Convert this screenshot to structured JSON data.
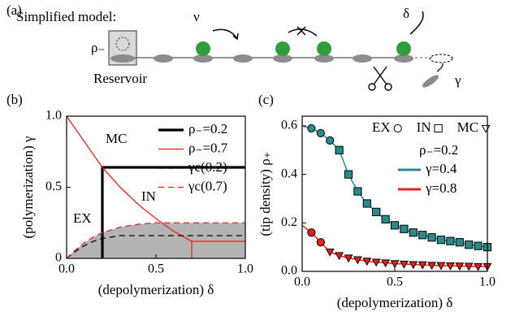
{
  "diagram": {
    "panel_label": "(a)",
    "title": "Simplified model:",
    "reservoir_symbol": "ρ₋",
    "reservoir_label": "Reservoir",
    "rate_move": "ν",
    "rate_depolymerization": "δ",
    "rate_polymerization": "γ"
  },
  "chart_data": [
    {
      "type": "line",
      "panel_label": "(b)",
      "xlabel": "(depolymerization) δ",
      "ylabel": "(polymerization) γ",
      "xlim": [
        0,
        1
      ],
      "ylim": [
        0,
        1
      ],
      "xticks": [
        {
          "value": 0,
          "label": "0.0"
        },
        0.5,
        {
          "value": 1,
          "label": "1.0"
        }
      ],
      "yticks": [
        0,
        0.5,
        {
          "value": 1,
          "label": "1.0"
        }
      ],
      "region_labels": [
        "MC",
        "IN",
        "EX"
      ],
      "shade": "#b3b3b3",
      "series": [
        {
          "name": "ρ₋=0.2",
          "color": "#000000",
          "width": 3.2,
          "dashed": false,
          "x": [
            0.2,
            0.2,
            1.0
          ],
          "values": [
            0,
            0.64,
            0.64
          ]
        },
        {
          "name": "ρ₋=0.7",
          "color": "#e8201c",
          "width": 1.3,
          "dashed": false,
          "x": [
            0,
            0.1,
            0.2,
            0.3,
            0.4,
            0.5,
            0.6,
            0.7,
            1.0,
            null,
            0.7,
            0.7
          ],
          "values": [
            1.0,
            0.82,
            0.64,
            0.5,
            0.38,
            0.28,
            0.19,
            0.12,
            0.12,
            null,
            0,
            0.12
          ]
        },
        {
          "name": "γc(0.2)",
          "color": "#000000",
          "width": 1.3,
          "dashed": true,
          "x": [
            0,
            0.05,
            0.1,
            0.15,
            0.2,
            0.3,
            0.4,
            0.5,
            0.7,
            1.0
          ],
          "values": [
            0,
            0.05,
            0.09,
            0.12,
            0.14,
            0.16,
            0.16,
            0.16,
            0.16,
            0.16
          ]
        },
        {
          "name": "γc(0.7)",
          "color": "#e8201c",
          "width": 1.3,
          "dashed": true,
          "shaded": true,
          "x": [
            0,
            0.05,
            0.1,
            0.15,
            0.2,
            0.3,
            0.4,
            0.5,
            0.7,
            1.0
          ],
          "values": [
            0,
            0.06,
            0.11,
            0.15,
            0.18,
            0.22,
            0.24,
            0.25,
            0.25,
            0.25
          ]
        }
      ]
    },
    {
      "type": "line",
      "panel_label": "(c)",
      "xlabel": "(depolymerization) δ",
      "ylabel": "(tip density) ρ₊",
      "xlim": [
        0,
        1
      ],
      "ylim": [
        0,
        0.64
      ],
      "xticks": [
        {
          "value": 0,
          "label": "0.0"
        },
        0.5,
        {
          "value": 1,
          "label": "1.0"
        }
      ],
      "yticks": [
        {
          "value": 0,
          "label": "0.0"
        },
        0.2,
        0.4,
        0.6
      ],
      "marker_legend": [
        {
          "label": "EX",
          "marker": "circle"
        },
        {
          "label": "IN",
          "marker": "square"
        },
        {
          "label": "MC",
          "marker": "triangle"
        }
      ],
      "legend_title": "ρ₋=0.2",
      "series": [
        {
          "name": "γ=0.4",
          "color": "#2a8a8c",
          "width": 1.5,
          "dashed": false,
          "x": [
            0,
            0.05,
            0.1,
            0.15,
            0.2,
            0.25,
            0.3,
            0.35,
            0.4,
            0.45,
            0.5,
            0.55,
            0.6,
            0.65,
            0.7,
            0.75,
            0.8,
            0.85,
            0.9,
            0.95,
            1.0
          ],
          "values": [
            0.6,
            0.59,
            0.57,
            0.54,
            0.5,
            0.4,
            0.33,
            0.28,
            0.245,
            0.215,
            0.19,
            0.175,
            0.16,
            0.15,
            0.14,
            0.13,
            0.125,
            0.12,
            0.11,
            0.105,
            0.1
          ],
          "markers": [
            null,
            "circle",
            "circle",
            "circle",
            "square",
            "square",
            "square",
            "square",
            "square",
            "square",
            "square",
            "square",
            "square",
            "square",
            "square",
            "square",
            "square",
            "square",
            "square",
            "square",
            "square"
          ]
        },
        {
          "name": "γ=0.8",
          "color": "#e8201c",
          "width": 1.5,
          "dashed": false,
          "x": [
            0,
            0.05,
            0.1,
            0.15,
            0.2,
            0.25,
            0.3,
            0.35,
            0.4,
            0.45,
            0.5,
            0.55,
            0.6,
            0.65,
            0.7,
            0.75,
            0.8,
            0.85,
            0.9,
            0.95,
            1.0
          ],
          "values": [
            0.19,
            0.16,
            0.12,
            0.08,
            0.065,
            0.055,
            0.048,
            0.042,
            0.038,
            0.035,
            0.032,
            0.03,
            0.028,
            0.027,
            0.025,
            0.024,
            0.023,
            0.022,
            0.021,
            0.02,
            0.02
          ],
          "markers": [
            null,
            "circle",
            "circle",
            "triangle",
            "triangle",
            "triangle",
            "triangle",
            "triangle",
            "triangle",
            "triangle",
            "triangle",
            "triangle",
            "triangle",
            "triangle",
            "triangle",
            "triangle",
            "triangle",
            "triangle",
            "triangle",
            "triangle",
            "triangle"
          ]
        }
      ]
    }
  ]
}
